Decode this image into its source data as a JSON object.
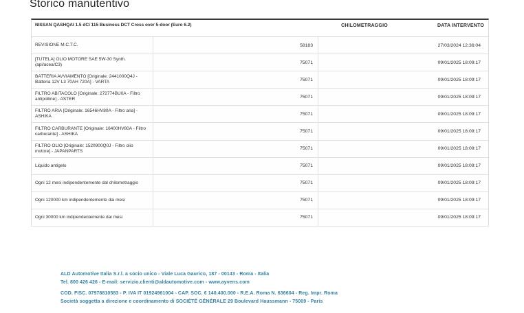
{
  "page": {
    "title": "Storico manutentivo"
  },
  "table": {
    "header": {
      "vehicle": "NISSAN QASHQAI 1.5 dCi 115 Business DCT Cross over 5-door (Euro 6.2)",
      "col_km": "CHILOMETRAGGIO",
      "col_date": "DATA INTERVENTO"
    },
    "rows": [
      {
        "desc": "REVISIONE M.C.T.C.",
        "km": "58183",
        "date": "27/03/2024 12:36:04"
      },
      {
        "desc": "[TUTELA] OLIO MOTORE SAE 5W-30 Synth. (api/acea/C3)",
        "km": "75071",
        "date": "09/01/2025 18:09:17"
      },
      {
        "desc": "BATTERIA AVVIAMENTO [Originale: 2441000Q4J - Batteria 12V L3 70AH 720A] - VARTA",
        "km": "75071",
        "date": "09/01/2025 18:09:17"
      },
      {
        "desc": "FILTRO ABITACOLO [Originale: 272774BU0A - Filtro antipolline] - ASTER",
        "km": "75071",
        "date": "09/01/2025 18:09:17"
      },
      {
        "desc": "FILTRO ARIA [Originale: 16546HV80A - Filtro aria] - ASHIKA",
        "km": "75071",
        "date": "09/01/2025 18:09:17"
      },
      {
        "desc": "FILTRO CARBURANTE [Originale: 16400HV80A - Filtro carburante] - ASHIKA",
        "km": "75071",
        "date": "09/01/2025 18:09:17"
      },
      {
        "desc": "FILTRO OLIO [Originale: 1520900Q0J - Filtro olio motore] - JAPANPARTS",
        "km": "75071",
        "date": "09/01/2025 18:09:17"
      },
      {
        "desc": "Liquido antigelo",
        "km": "75071",
        "date": "09/01/2025 18:09:17"
      },
      {
        "desc": "Ogni 12 mesi indipendentemente dal chilometraggio",
        "km": "75071",
        "date": "09/01/2025 18:09:17"
      },
      {
        "desc": "Ogni 120000 km indipendentemente dai mesi",
        "km": "75071",
        "date": "09/01/2025 18:09:17"
      },
      {
        "desc": "Ogni 30000 km indipendentemente dai mesi",
        "km": "75071",
        "date": "09/01/2025 18:09:17"
      }
    ]
  },
  "footer": {
    "accent_color": "#34809f",
    "lines": [
      "ALD Automotive Italia S.r.l. a socio unico - Viale Luca Gaurico, 187 - 00143 - Roma - Italia",
      "Tel. 800 426 426 - E-mail: servizio.clienti@aldautomotive.com - www.ayvens.com",
      "COD. FISC. 07978810583 - P. IVA IT 01924961004 - CAP. SOC. € 140.400.000 - R.E.A. Roma N. 636604 - Reg. Impr. Roma",
      "Società soggetta a direzione e coordinamento di SOCIÉTÉ GÉNÉRALE 29 Boulevard Haussmann - 75009 - Paris"
    ]
  }
}
